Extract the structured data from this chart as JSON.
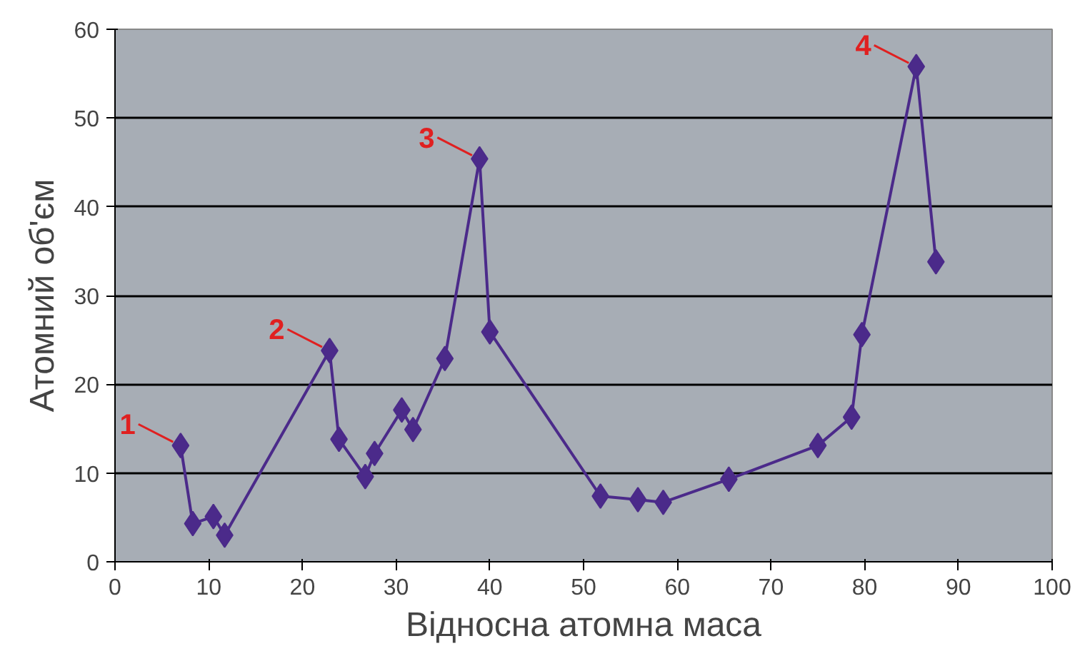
{
  "chart_data": {
    "type": "line",
    "xlabel": "Відносна атомна маса",
    "ylabel": "Атомний об'єм",
    "x": [
      7,
      8.3,
      10.5,
      11.7,
      22.9,
      23.9,
      26.7,
      27.7,
      30.6,
      31.8,
      35.2,
      38.9,
      40,
      51.8,
      55.8,
      58.5,
      65.5,
      75,
      78.6,
      79.7,
      85.5,
      87.6
    ],
    "series": [
      {
        "color": "#4b2a8a",
        "values": [
          13.1,
          4.3,
          5.1,
          3.0,
          23.8,
          13.8,
          9.6,
          12.2,
          17.1,
          14.9,
          22.9,
          45.4,
          25.9,
          7.4,
          7.0,
          6.7,
          9.3,
          13.1,
          16.3,
          25.6,
          55.8,
          33.8
        ]
      }
    ],
    "annotations": [
      {
        "text": "1",
        "x": 7,
        "y": 13.1
      },
      {
        "text": "2",
        "x": 22.9,
        "y": 23.8
      },
      {
        "text": "3",
        "x": 38.9,
        "y": 45.4
      },
      {
        "text": "4",
        "x": 85.5,
        "y": 55.8
      }
    ],
    "xlim": [
      0,
      100
    ],
    "ylim": [
      0,
      60
    ],
    "xticks": [
      0,
      10,
      20,
      30,
      40,
      50,
      60,
      70,
      80,
      90,
      100
    ],
    "yticks": [
      0,
      10,
      20,
      30,
      40,
      50,
      60
    ],
    "grid": "y",
    "marker": "diamond",
    "line_style": "solid"
  }
}
